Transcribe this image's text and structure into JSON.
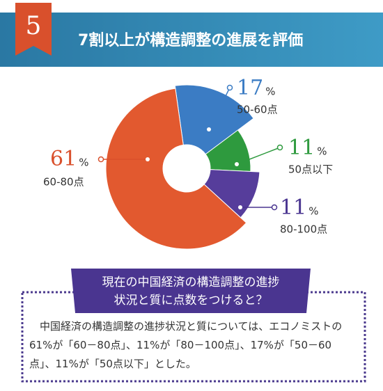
{
  "header": {
    "badge": "5",
    "title": "7割以上が構造調整の進展を評価"
  },
  "chart_data": {
    "type": "donut",
    "categories": [
      "50-60点",
      "50点以下",
      "80-100点",
      "60-80点"
    ],
    "values": [
      17,
      11,
      11,
      61
    ],
    "unit": "%",
    "colors": [
      "#3b7cc4",
      "#2e9a3e",
      "#563d9b",
      "#e2592f"
    ]
  },
  "question": [
    "現在の中国経済の構造調整の進捗",
    "状況と質に点数をつけると？"
  ],
  "body": "中国経済の構造調整の進捗状況と質については、エコノミストの61%が「60－80点」、11%が「80－100点」、17%が「50－60点」、11%が「50点以下」とした。"
}
